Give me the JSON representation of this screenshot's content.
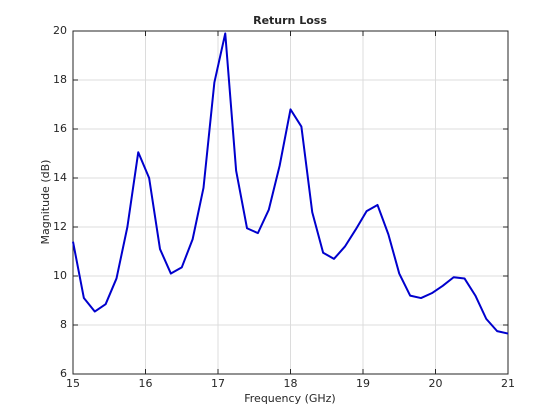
{
  "chart_data": {
    "type": "line",
    "title": "Return Loss",
    "x_label": "Frequency (GHz)",
    "y_label": "Magnitude (dB)",
    "x": [
      15.0,
      15.15,
      15.3,
      15.45,
      15.6,
      15.75,
      15.9,
      16.05,
      16.2,
      16.35,
      16.5,
      16.65,
      16.8,
      16.95,
      17.1,
      17.25,
      17.4,
      17.55,
      17.7,
      17.85,
      18.0,
      18.15,
      18.3,
      18.45,
      18.6,
      18.75,
      18.9,
      19.05,
      19.2,
      19.35,
      19.5,
      19.65,
      19.8,
      19.95,
      20.1,
      20.25,
      20.4,
      20.55,
      20.7,
      20.85,
      21.0
    ],
    "series": [
      {
        "color": "#0000cd",
        "values": [
          11.4,
          9.1,
          8.55,
          8.85,
          9.9,
          12.0,
          15.05,
          14.0,
          11.1,
          10.1,
          10.35,
          11.5,
          13.6,
          17.9,
          19.9,
          14.3,
          11.95,
          11.75,
          12.7,
          14.5,
          16.8,
          16.1,
          12.6,
          10.95,
          10.7,
          11.2,
          11.9,
          12.65,
          12.9,
          11.7,
          10.1,
          9.2,
          9.1,
          9.3,
          9.6,
          9.95,
          9.9,
          9.2,
          8.25,
          7.75,
          7.65
        ]
      }
    ],
    "xlim": [
      15,
      21
    ],
    "ylim": [
      6,
      20
    ],
    "xticks": [
      15,
      16,
      17,
      18,
      19,
      20,
      21
    ],
    "yticks": [
      6,
      8,
      10,
      12,
      14,
      16,
      18,
      20
    ],
    "grid": true
  }
}
